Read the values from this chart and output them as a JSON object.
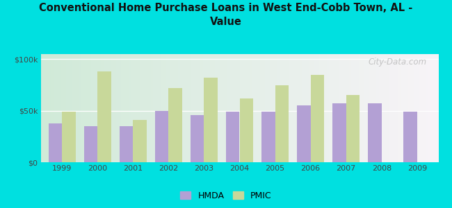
{
  "title": "Conventional Home Purchase Loans in West End-Cobb Town, AL -\nValue",
  "years": [
    1999,
    2000,
    2001,
    2002,
    2003,
    2004,
    2005,
    2006,
    2007,
    2008,
    2009
  ],
  "hmda": [
    38000,
    35000,
    35000,
    50000,
    46000,
    49000,
    49000,
    55000,
    57000,
    57000,
    49000
  ],
  "pmic": [
    49000,
    88000,
    41000,
    72000,
    82000,
    62000,
    75000,
    85000,
    65000,
    0,
    0
  ],
  "hmda_color": "#b3a0d4",
  "pmic_color": "#c8d89a",
  "background_outer": "#00e0e0",
  "ylabel_ticks": [
    "$0",
    "$50k",
    "$100k"
  ],
  "ytick_vals": [
    0,
    50000,
    100000
  ],
  "ylim": [
    0,
    105000
  ],
  "watermark": "City-Data.com",
  "legend_labels": [
    "HMDA",
    "PMIC"
  ],
  "bar_width": 0.38
}
